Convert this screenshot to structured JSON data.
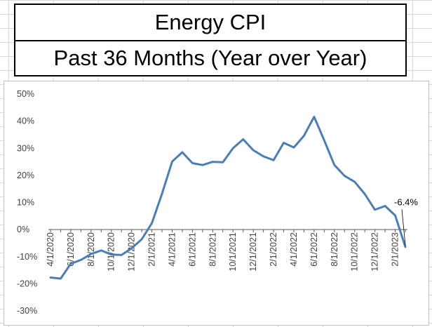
{
  "header": {
    "title": "Energy CPI",
    "subtitle": "Past 36 Months (Year over Year)"
  },
  "chart_data": {
    "type": "line",
    "title": "Energy CPI",
    "subtitle": "Past 36 Months (Year over Year)",
    "xlabel": "",
    "ylabel": "",
    "ylim": [
      -30,
      50
    ],
    "yticks": [
      50,
      40,
      30,
      20,
      10,
      0,
      -10,
      -20,
      -30
    ],
    "ytick_labels": [
      "50%",
      "40%",
      "30%",
      "20%",
      "10%",
      "0%",
      "-10%",
      "-20%",
      "-30%"
    ],
    "xtick_labels": [
      "4/1/2020",
      "6/1/2020",
      "8/1/2020",
      "10/1/2020",
      "12/1/2020",
      "2/1/2021",
      "4/1/2021",
      "6/1/2021",
      "8/1/2021",
      "10/1/2021",
      "12/1/2021",
      "2/1/2022",
      "4/1/2022",
      "6/1/2022",
      "8/1/2022",
      "10/1/2022",
      "12/1/2022",
      "2/1/2023"
    ],
    "grid": false,
    "line_color": "#4a7ebb",
    "series": [
      {
        "x": [
          "4/1/2020",
          "5/1/2020",
          "6/1/2020",
          "7/1/2020",
          "8/1/2020",
          "9/1/2020",
          "10/1/2020",
          "11/1/2020",
          "12/1/2020",
          "1/1/2021",
          "2/1/2021",
          "3/1/2021",
          "4/1/2021",
          "5/1/2021",
          "6/1/2021",
          "7/1/2021",
          "8/1/2021",
          "9/1/2021",
          "10/1/2021",
          "11/1/2021",
          "12/1/2021",
          "1/1/2022",
          "2/1/2022",
          "3/1/2022",
          "4/1/2022",
          "5/1/2022",
          "6/1/2022",
          "7/1/2022",
          "8/1/2022",
          "9/1/2022",
          "10/1/2022",
          "11/1/2022",
          "12/1/2022",
          "1/1/2023",
          "2/1/2023",
          "3/1/2023"
        ],
        "values": [
          -17.7,
          -18.1,
          -12.6,
          -11.2,
          -9.0,
          -7.7,
          -9.2,
          -9.4,
          -6.9,
          -3.6,
          2.4,
          13.2,
          25.1,
          28.5,
          24.5,
          23.8,
          25.0,
          24.8,
          30.0,
          33.3,
          29.3,
          27.0,
          25.6,
          32.0,
          30.3,
          34.6,
          41.6,
          32.9,
          23.8,
          19.8,
          17.6,
          13.1,
          7.3,
          8.7,
          5.2,
          -6.4
        ]
      }
    ],
    "annotations": [
      {
        "text": "-6.4%",
        "x": "3/1/2023",
        "y": -6.4
      }
    ]
  }
}
